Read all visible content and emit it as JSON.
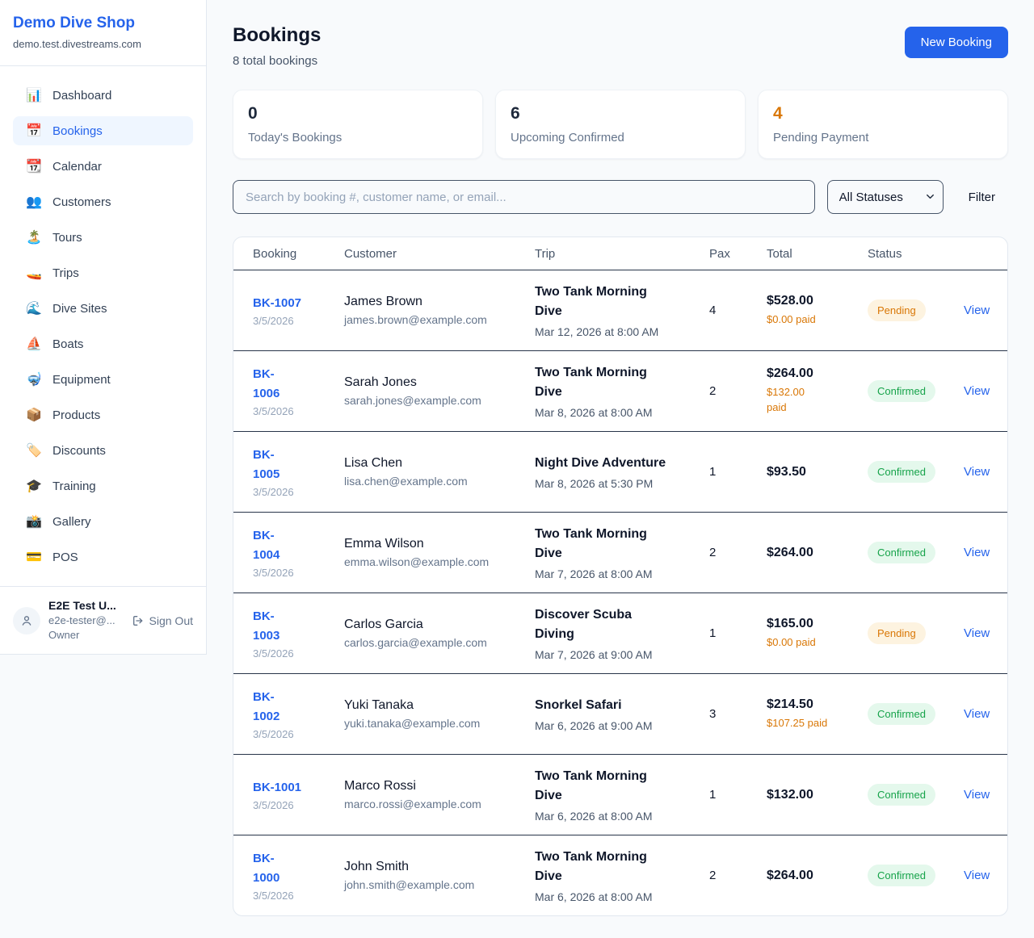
{
  "sidebar": {
    "brand": "Demo Dive Shop",
    "domain": "demo.test.divestreams.com",
    "items": [
      {
        "label": "Dashboard",
        "icon": "bar-chart-icon",
        "glyph": "📊",
        "active": false
      },
      {
        "label": "Bookings",
        "icon": "calendar-date-icon",
        "glyph": "📅",
        "active": true
      },
      {
        "label": "Calendar",
        "icon": "tear-off-calendar-icon",
        "glyph": "📆",
        "active": false
      },
      {
        "label": "Customers",
        "icon": "people-icon",
        "glyph": "👥",
        "active": false
      },
      {
        "label": "Tours",
        "icon": "island-icon",
        "glyph": "🏝️",
        "active": false
      },
      {
        "label": "Trips",
        "icon": "speedboat-icon",
        "glyph": "🚤",
        "active": false
      },
      {
        "label": "Dive Sites",
        "icon": "wave-icon",
        "glyph": "🌊",
        "active": false
      },
      {
        "label": "Boats",
        "icon": "sailboat-icon",
        "glyph": "⛵",
        "active": false
      },
      {
        "label": "Equipment",
        "icon": "diving-mask-icon",
        "glyph": "🤿",
        "active": false
      },
      {
        "label": "Products",
        "icon": "package-icon",
        "glyph": "📦",
        "active": false
      },
      {
        "label": "Discounts",
        "icon": "tag-icon",
        "glyph": "🏷️",
        "active": false
      },
      {
        "label": "Training",
        "icon": "graduation-cap-icon",
        "glyph": "🎓",
        "active": false
      },
      {
        "label": "Gallery",
        "icon": "camera-icon",
        "glyph": "📸",
        "active": false
      },
      {
        "label": "POS",
        "icon": "credit-card-icon",
        "glyph": "💳",
        "active": false
      }
    ],
    "user": {
      "name": "E2E Test U...",
      "email": "e2e-tester@...",
      "role": "Owner",
      "sign_out": "Sign Out"
    }
  },
  "header": {
    "title": "Bookings",
    "subtitle": "8 total bookings",
    "new_booking": "New Booking"
  },
  "stats": [
    {
      "value": "0",
      "label": "Today's Bookings",
      "variant": "dark"
    },
    {
      "value": "6",
      "label": "Upcoming Confirmed",
      "variant": "dark"
    },
    {
      "value": "4",
      "label": "Pending Payment",
      "variant": "orange"
    }
  ],
  "filters": {
    "search_placeholder": "Search by booking #, customer name, or email...",
    "status_select": "All Statuses",
    "filter_label": "Filter"
  },
  "table": {
    "columns": [
      "Booking",
      "Customer",
      "Trip",
      "Pax",
      "Total",
      "Status"
    ],
    "view_label": "View",
    "rows": [
      {
        "id_lines": [
          "BK-1007"
        ],
        "date": "3/5/2026",
        "customer": "James Brown",
        "email": "james.brown@example.com",
        "trip_lines": [
          "Two Tank Morning",
          "Dive"
        ],
        "trip_datetime": "Mar 12, 2026 at 8:00 AM",
        "pax": "4",
        "total": "$528.00",
        "paid_lines": [
          "$0.00 paid"
        ],
        "status": "Pending",
        "status_variant": "pending"
      },
      {
        "id_lines": [
          "BK-",
          "1006"
        ],
        "date": "3/5/2026",
        "customer": "Sarah Jones",
        "email": "sarah.jones@example.com",
        "trip_lines": [
          "Two Tank Morning",
          "Dive"
        ],
        "trip_datetime": "Mar 8, 2026 at 8:00 AM",
        "pax": "2",
        "total": "$264.00",
        "paid_lines": [
          "$132.00",
          "paid"
        ],
        "status": "Confirmed",
        "status_variant": "confirmed"
      },
      {
        "id_lines": [
          "BK-",
          "1005"
        ],
        "date": "3/5/2026",
        "customer": "Lisa Chen",
        "email": "lisa.chen@example.com",
        "trip_lines": [
          "Night Dive Adventure"
        ],
        "trip_datetime": "Mar 8, 2026 at 5:30 PM",
        "pax": "1",
        "total": "$93.50",
        "paid_lines": null,
        "status": "Confirmed",
        "status_variant": "confirmed"
      },
      {
        "id_lines": [
          "BK-",
          "1004"
        ],
        "date": "3/5/2026",
        "customer": "Emma Wilson",
        "email": "emma.wilson@example.com",
        "trip_lines": [
          "Two Tank Morning",
          "Dive"
        ],
        "trip_datetime": "Mar 7, 2026 at 8:00 AM",
        "pax": "2",
        "total": "$264.00",
        "paid_lines": null,
        "status": "Confirmed",
        "status_variant": "confirmed"
      },
      {
        "id_lines": [
          "BK-",
          "1003"
        ],
        "date": "3/5/2026",
        "customer": "Carlos Garcia",
        "email": "carlos.garcia@example.com",
        "trip_lines": [
          "Discover Scuba",
          "Diving"
        ],
        "trip_datetime": "Mar 7, 2026 at 9:00 AM",
        "pax": "1",
        "total": "$165.00",
        "paid_lines": [
          "$0.00 paid"
        ],
        "status": "Pending",
        "status_variant": "pending"
      },
      {
        "id_lines": [
          "BK-",
          "1002"
        ],
        "date": "3/5/2026",
        "customer": "Yuki Tanaka",
        "email": "yuki.tanaka@example.com",
        "trip_lines": [
          "Snorkel Safari"
        ],
        "trip_datetime": "Mar 6, 2026 at 9:00 AM",
        "pax": "3",
        "total": "$214.50",
        "paid_lines": [
          "$107.25 paid"
        ],
        "status": "Confirmed",
        "status_variant": "confirmed"
      },
      {
        "id_lines": [
          "BK-1001"
        ],
        "date": "3/5/2026",
        "customer": "Marco Rossi",
        "email": "marco.rossi@example.com",
        "trip_lines": [
          "Two Tank Morning",
          "Dive"
        ],
        "trip_datetime": "Mar 6, 2026 at 8:00 AM",
        "pax": "1",
        "total": "$132.00",
        "paid_lines": null,
        "status": "Confirmed",
        "status_variant": "confirmed"
      },
      {
        "id_lines": [
          "BK-",
          "1000"
        ],
        "date": "3/5/2026",
        "customer": "John Smith",
        "email": "john.smith@example.com",
        "trip_lines": [
          "Two Tank Morning",
          "Dive"
        ],
        "trip_datetime": "Mar 6, 2026 at 8:00 AM",
        "pax": "2",
        "total": "$264.00",
        "paid_lines": null,
        "status": "Confirmed",
        "status_variant": "confirmed"
      }
    ]
  },
  "colors": {
    "accent_blue": "#2563eb",
    "pending_orange": "#d97706",
    "confirmed_green": "#16a34a",
    "page_background": "#f8fafc"
  }
}
